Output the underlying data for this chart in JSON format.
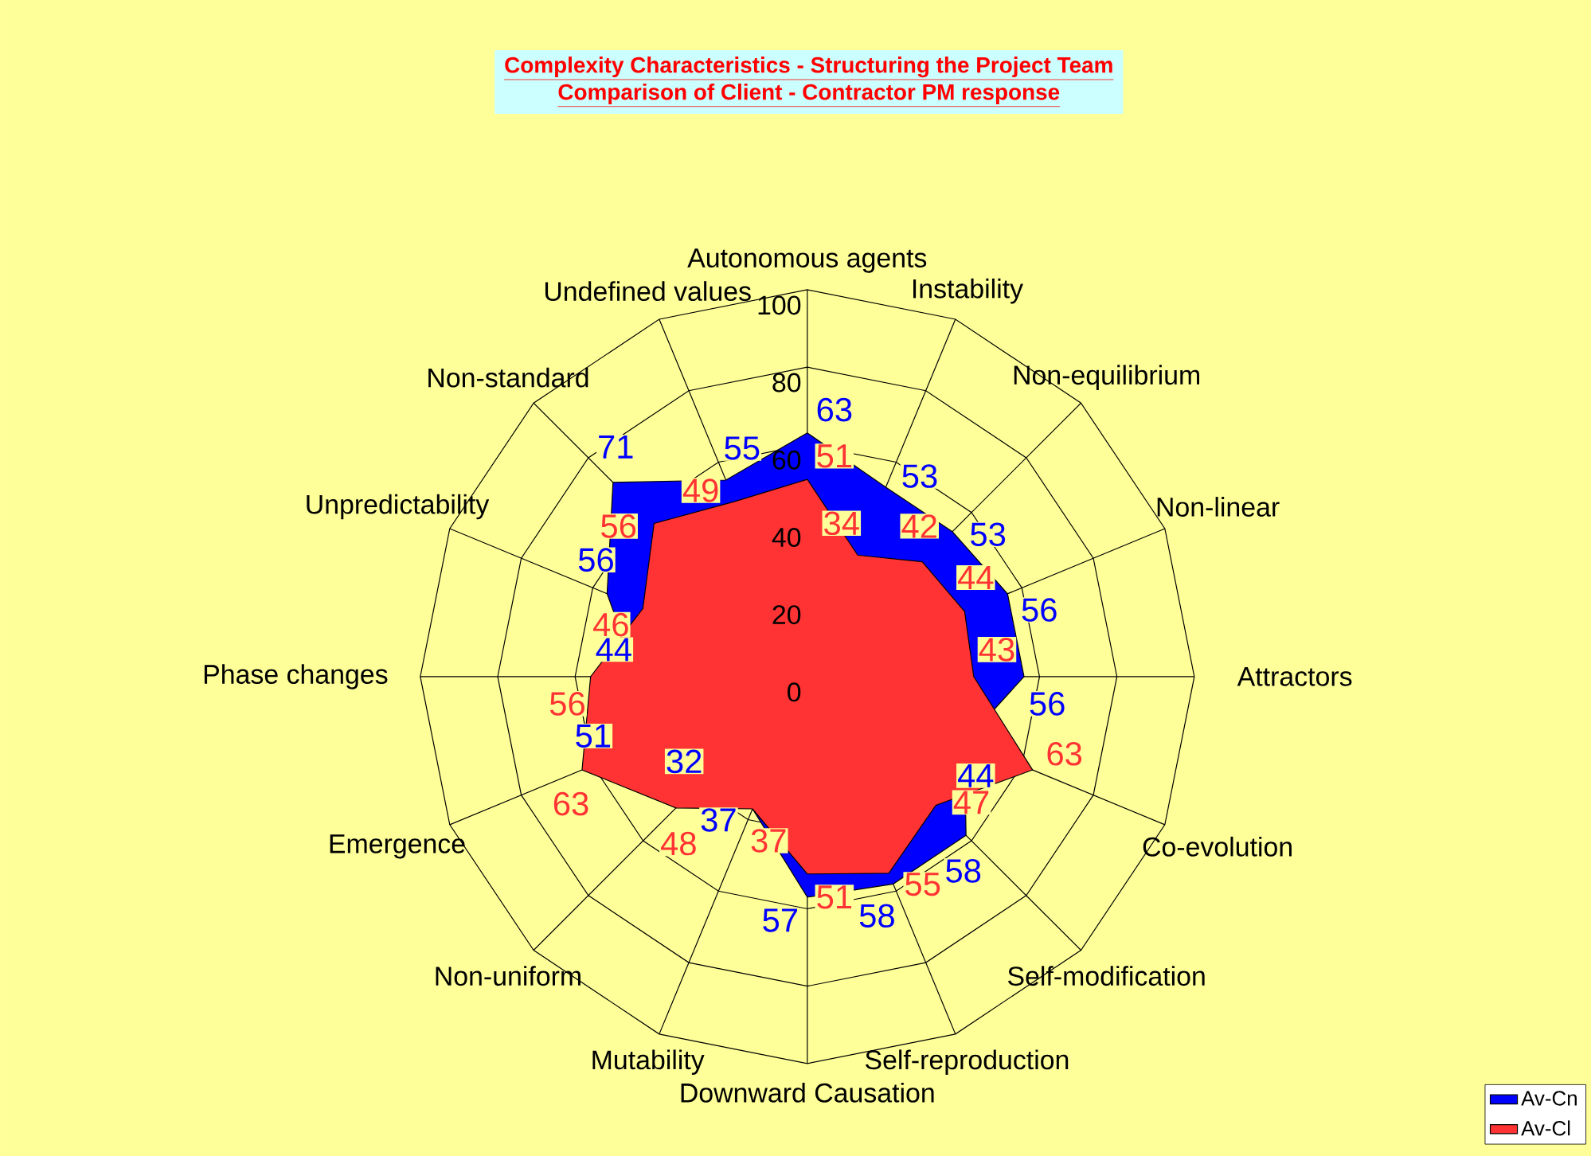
{
  "chart_data": {
    "type": "radar",
    "title": "Complexity Characteristics - Structuring the Project Team",
    "subtitle": "Comparison of Client - Contractor PM response",
    "categories": [
      "Autonomous agents",
      "Instability",
      "Non-equilibrium",
      "Non-linear",
      "Attractors",
      "Co-evolution",
      "Self-modification",
      "Self-reproduction",
      "Downward Causation",
      "Mutability",
      "Non-uniform",
      "Emergence",
      "Phase changes",
      "Unpredictability",
      "Non-standard",
      "Undefined values"
    ],
    "series": [
      {
        "name": "Av-Cn",
        "color": "#0000ff",
        "values": [
          63,
          53,
          53,
          56,
          56,
          44,
          58,
          58,
          57,
          37,
          32,
          51,
          44,
          56,
          71,
          55
        ]
      },
      {
        "name": "Av-Cl",
        "color": "#ff3333",
        "values": [
          51,
          34,
          42,
          44,
          43,
          63,
          47,
          55,
          51,
          37,
          48,
          63,
          56,
          46,
          56,
          49
        ]
      }
    ],
    "ylim": [
      0,
      100
    ],
    "yticks": [
      0,
      20,
      40,
      60,
      80,
      100
    ],
    "grid": true,
    "legend": "bottom right",
    "data_labels": true
  }
}
